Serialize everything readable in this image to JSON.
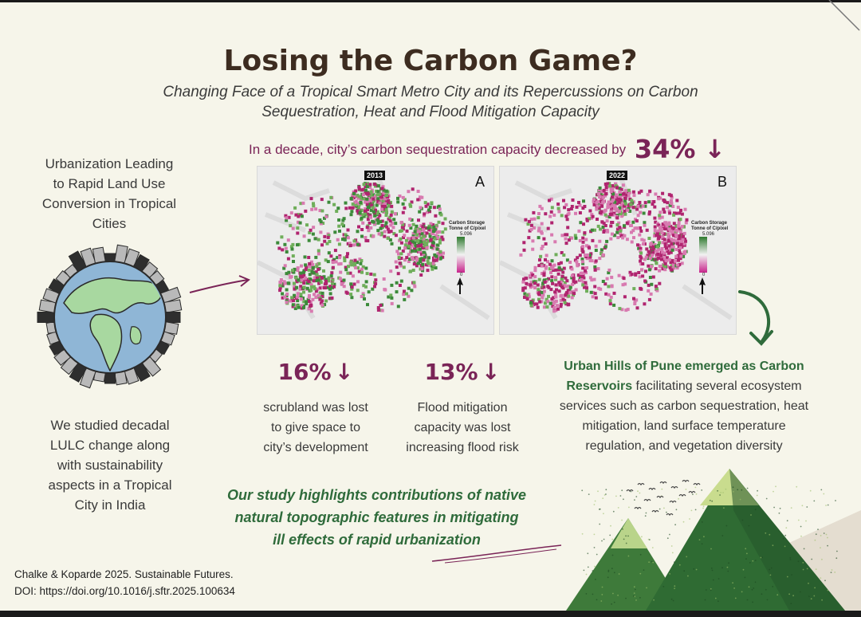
{
  "title": "Losing the Carbon Game?",
  "subtitle_line1": "Changing Face of a Tropical Smart Metro City and its Repercussions on Carbon",
  "subtitle_line2": "Sequestration, Heat and Flood Mitigation Capacity",
  "decade": {
    "text": "In a decade, city’s carbon sequestration capacity decreased by",
    "value": "34%",
    "arrow": "↓"
  },
  "left_top": [
    "Urbanization Leading",
    "to Rapid Land Use",
    "Conversion in Tropical",
    "Cities"
  ],
  "left_bottom": [
    "We studied decadal",
    "LULC change along",
    "with sustainability",
    "aspects in a Tropical",
    "City in India"
  ],
  "maps": [
    {
      "year": "2013",
      "letter": "A",
      "legend_title_1": "Carbon Storage",
      "legend_title_2": "Tonne of C/pixel",
      "legend_max": "5.096",
      "legend_min": "0"
    },
    {
      "year": "2022",
      "letter": "B",
      "legend_title_1": "Carbon Storage",
      "legend_title_2": "Tonne of C/pixel",
      "legend_max": "5.096",
      "legend_min": "0"
    }
  ],
  "stats": [
    {
      "value": "16%",
      "arrow": "↓",
      "lines": [
        "scrubland was lost",
        "to give space to",
        "city’s development"
      ]
    },
    {
      "value": "13%",
      "arrow": "↓",
      "lines": [
        "Flood mitigation",
        "capacity was lost",
        "increasing flood risk"
      ]
    }
  ],
  "hills": {
    "bold_1": "Urban Hills of Pune emerged as Carbon",
    "bold_2": "Reservoirs",
    "rest_1": " facilitating several ecosystem",
    "lines": [
      "services such as carbon sequestration, heat",
      "mitigation, land surface temperature",
      "regulation, and vegetation diversity"
    ]
  },
  "highlight": [
    "Our study highlights contributions of native",
    "natural topographic features in mitigating",
    "ill effects of rapid urbanization"
  ],
  "citation": [
    "Chalke & Koparde 2025. Sustainable Futures.",
    "DOI: https://doi.org/10.1016/j.sftr.2025.100634"
  ],
  "colors": {
    "title": "#3d2c20",
    "accent_magenta": "#7a2457",
    "accent_green": "#2f6b3b",
    "background": "#f6f5ea"
  },
  "icons": [
    "earth-city-icon",
    "arrow-right-icon",
    "curved-arrow-down-icon",
    "mountains-icon",
    "birds-icon"
  ]
}
